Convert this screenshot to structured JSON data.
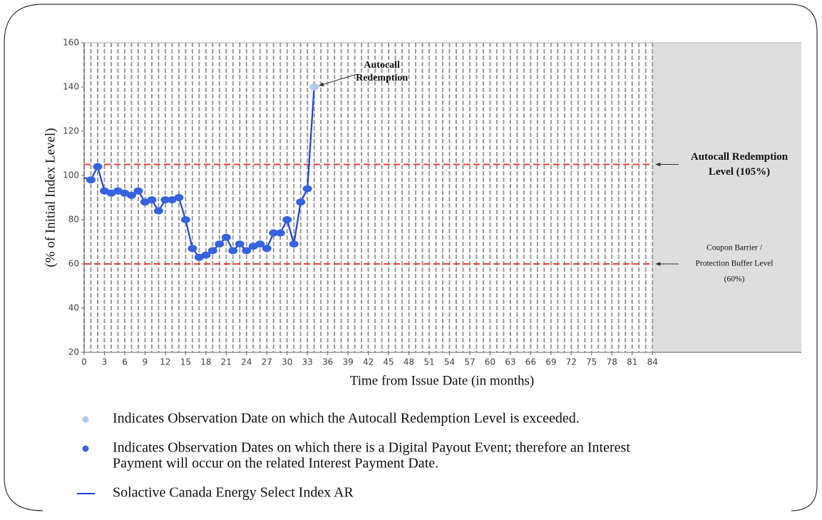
{
  "chart_data": {
    "type": "line",
    "x_label": "Time from Issue Date (in months)",
    "y_label": "(% of Initial Index Level)",
    "x": [
      0,
      1,
      2,
      3,
      4,
      5,
      6,
      7,
      8,
      9,
      10,
      11,
      12,
      13,
      14,
      15,
      16,
      17,
      18,
      19,
      20,
      21,
      22,
      23,
      24,
      25,
      26,
      27,
      28,
      29,
      30,
      31,
      32,
      33,
      34
    ],
    "series": [
      {
        "name": "Solactive Canada Energy Select Index AR",
        "color": "#1f3fe0",
        "values": [
          99,
          98,
          104,
          93,
          92,
          93,
          92,
          91,
          93,
          88,
          89,
          84,
          89,
          89,
          90,
          80,
          67,
          63,
          64,
          66,
          69,
          72,
          66,
          69,
          66,
          68,
          69,
          67,
          74,
          74,
          80,
          69,
          88,
          94,
          140
        ],
        "point_colors": [
          null,
          "#3563e0",
          "#3563e0",
          "#3563e0",
          "#3563e0",
          "#3563e0",
          "#3563e0",
          "#3563e0",
          "#3563e0",
          "#3563e0",
          "#3563e0",
          "#3563e0",
          "#3563e0",
          "#3563e0",
          "#3563e0",
          "#3563e0",
          "#3563e0",
          "#3563e0",
          "#3563e0",
          "#3563e0",
          "#3563e0",
          "#3563e0",
          "#3563e0",
          "#3563e0",
          "#3563e0",
          "#3563e0",
          "#3563e0",
          "#3563e0",
          "#3563e0",
          "#3563e0",
          "#3563e0",
          "#3563e0",
          "#3563e0",
          "#3563e0",
          "#b3c9ef"
        ]
      }
    ],
    "xlim": [
      0,
      106
    ],
    "ylim": [
      20,
      160
    ],
    "xticks": [
      0,
      3,
      6,
      9,
      12,
      15,
      18,
      21,
      24,
      27,
      30,
      33,
      36,
      39,
      42,
      45,
      48,
      51,
      54,
      57,
      60,
      63,
      66,
      69,
      72,
      75,
      78,
      81,
      84
    ],
    "yticks": [
      20,
      40,
      60,
      80,
      100,
      120,
      140,
      160
    ],
    "xgrid": [
      0,
      1,
      2,
      3,
      4,
      5,
      6,
      7,
      8,
      9,
      10,
      11,
      12,
      13,
      14,
      15,
      16,
      17,
      18,
      19,
      20,
      21,
      22,
      23,
      24,
      25,
      26,
      27,
      28,
      29,
      30,
      31,
      32,
      33,
      34,
      35,
      36,
      37,
      38,
      39,
      40,
      41,
      42,
      43,
      44,
      45,
      46,
      47,
      48,
      49,
      50,
      51,
      52,
      53,
      54,
      55,
      56,
      57,
      58,
      59,
      60,
      61,
      62,
      63,
      64,
      65,
      66,
      67,
      68,
      69,
      70,
      71,
      72,
      73,
      74,
      75,
      76,
      77,
      78,
      79,
      80,
      81,
      82,
      83,
      84
    ],
    "grid_color": "#9a9a9a",
    "shade_from": 84,
    "shade_color": "#dedede",
    "reference_lines": [
      {
        "value": 105,
        "color": "#e8413a",
        "label": [
          "Autocall Redemption",
          "Level (105%)"
        ]
      },
      {
        "value": 60,
        "color": "#e8413a",
        "label": [
          "Coupon Barrier /",
          "Protection Buffer Level",
          "(60%)"
        ]
      }
    ],
    "annotation": {
      "text": [
        "Autocall",
        "Redemption"
      ],
      "point": 34
    },
    "legend": [
      {
        "marker": "dot",
        "color": "#b3c9ef",
        "text": [
          "Indicates Observation Date on which the Autocall Redemption Level is exceeded."
        ]
      },
      {
        "marker": "dot",
        "color": "#3563e0",
        "text": [
          "Indicates Observation Dates on which there is a Digital Payout Event; therefore an Interest",
          "Payment will occur on the related Interest Payment Date."
        ]
      },
      {
        "marker": "line",
        "color": "#1f3fe0",
        "series": 0
      }
    ]
  }
}
